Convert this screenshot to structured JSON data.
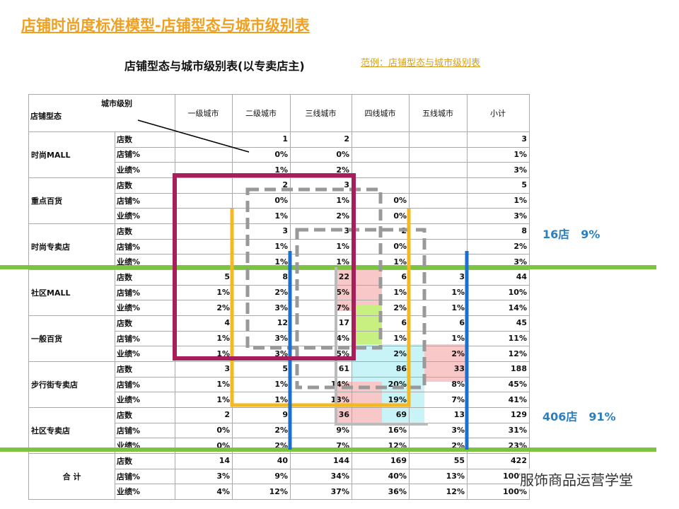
{
  "header": {
    "title": "店铺时尚度标准模型-店铺型态与城市级别表",
    "subtitle": "店铺型态与城市级别表(以专卖店主)",
    "link": "范例：店铺型态与城市级别表"
  },
  "table": {
    "corner_top": "城市级别",
    "corner_bottom": "店铺型态",
    "columns": [
      "一级城市",
      "二级城市",
      "三线城市",
      "四线城市",
      "五线城市",
      "小计"
    ],
    "groups": [
      {
        "name": "时尚MALL",
        "rows": [
          {
            "metric": "店数",
            "cells": [
              null,
              "1",
              "2",
              null,
              null,
              "3"
            ]
          },
          {
            "metric": "店铺%",
            "cells": [
              null,
              "0%",
              "0%",
              null,
              null,
              "1%"
            ]
          },
          {
            "metric": "业绩%",
            "cells": [
              null,
              "1%",
              "2%",
              null,
              null,
              "3%"
            ]
          }
        ]
      },
      {
        "name": "重点百货",
        "rows": [
          {
            "metric": "店数",
            "cells": [
              null,
              "2",
              "3",
              null,
              null,
              "5"
            ]
          },
          {
            "metric": "店铺%",
            "cells": [
              null,
              "0%",
              "1%",
              "0%",
              null,
              "1%"
            ]
          },
          {
            "metric": "业绩%",
            "cells": [
              null,
              "1%",
              "2%",
              "0%",
              null,
              "3%"
            ]
          }
        ]
      },
      {
        "name": "时尚专卖店",
        "rows": [
          {
            "metric": "店数",
            "cells": [
              null,
              "3",
              "3",
              "2",
              null,
              "8"
            ]
          },
          {
            "metric": "店铺%",
            "cells": [
              null,
              "1%",
              "1%",
              "0%",
              null,
              "2%"
            ]
          },
          {
            "metric": "业绩%",
            "cells": [
              null,
              "1%",
              "1%",
              "1%",
              null,
              "3%"
            ]
          }
        ]
      },
      {
        "name": "社区MALL",
        "rows": [
          {
            "metric": "店数",
            "cells": [
              "5",
              "8",
              "22",
              "6",
              "3",
              "44"
            ]
          },
          {
            "metric": "店铺%",
            "cells": [
              "1%",
              "2%",
              "5%",
              "1%",
              "1%",
              "10%"
            ]
          },
          {
            "metric": "业绩%",
            "cells": [
              "2%",
              "3%",
              "7%",
              "2%",
              "1%",
              "14%"
            ]
          }
        ]
      },
      {
        "name": "一般百货",
        "rows": [
          {
            "metric": "店数",
            "cells": [
              "4",
              "12",
              "17",
              "6",
              "6",
              "45"
            ]
          },
          {
            "metric": "店铺%",
            "cells": [
              "1%",
              "3%",
              "4%",
              "1%",
              "1%",
              "11%"
            ]
          },
          {
            "metric": "业绩%",
            "cells": [
              "1%",
              "3%",
              "5%",
              "2%",
              "2%",
              "12%"
            ]
          }
        ]
      },
      {
        "name": "步行街专卖店",
        "rows": [
          {
            "metric": "店数",
            "cells": [
              "3",
              "5",
              "61",
              "86",
              "33",
              "188"
            ]
          },
          {
            "metric": "店铺%",
            "cells": [
              "1%",
              "1%",
              "14%",
              "20%",
              "8%",
              "45%"
            ]
          },
          {
            "metric": "业绩%",
            "cells": [
              "1%",
              "1%",
              "13%",
              "19%",
              "7%",
              "41%"
            ]
          }
        ]
      },
      {
        "name": "社区专卖店",
        "rows": [
          {
            "metric": "店数",
            "cells": [
              "2",
              "9",
              "36",
              "69",
              "13",
              "129"
            ]
          },
          {
            "metric": "店铺%",
            "cells": [
              "0%",
              "2%",
              "9%",
              "16%",
              "3%",
              "31%"
            ]
          },
          {
            "metric": "业绩%",
            "cells": [
              "0%",
              "2%",
              "7%",
              "12%",
              "2%",
              "23%"
            ]
          }
        ]
      },
      {
        "name": "合 计",
        "rows": [
          {
            "metric": "店数",
            "cells": [
              "14",
              "40",
              "144",
              "169",
              "55",
              "422"
            ]
          },
          {
            "metric": "店铺%",
            "cells": [
              "3%",
              "9%",
              "34%",
              "40%",
              "13%",
              "100%"
            ]
          },
          {
            "metric": "业绩%",
            "cells": [
              "4%",
              "12%",
              "37%",
              "36%",
              "12%",
              "100%"
            ]
          }
        ]
      }
    ]
  },
  "annotations": [
    "16店　9%",
    "406店　91%"
  ],
  "watermark": "服饰商品运营学堂"
}
